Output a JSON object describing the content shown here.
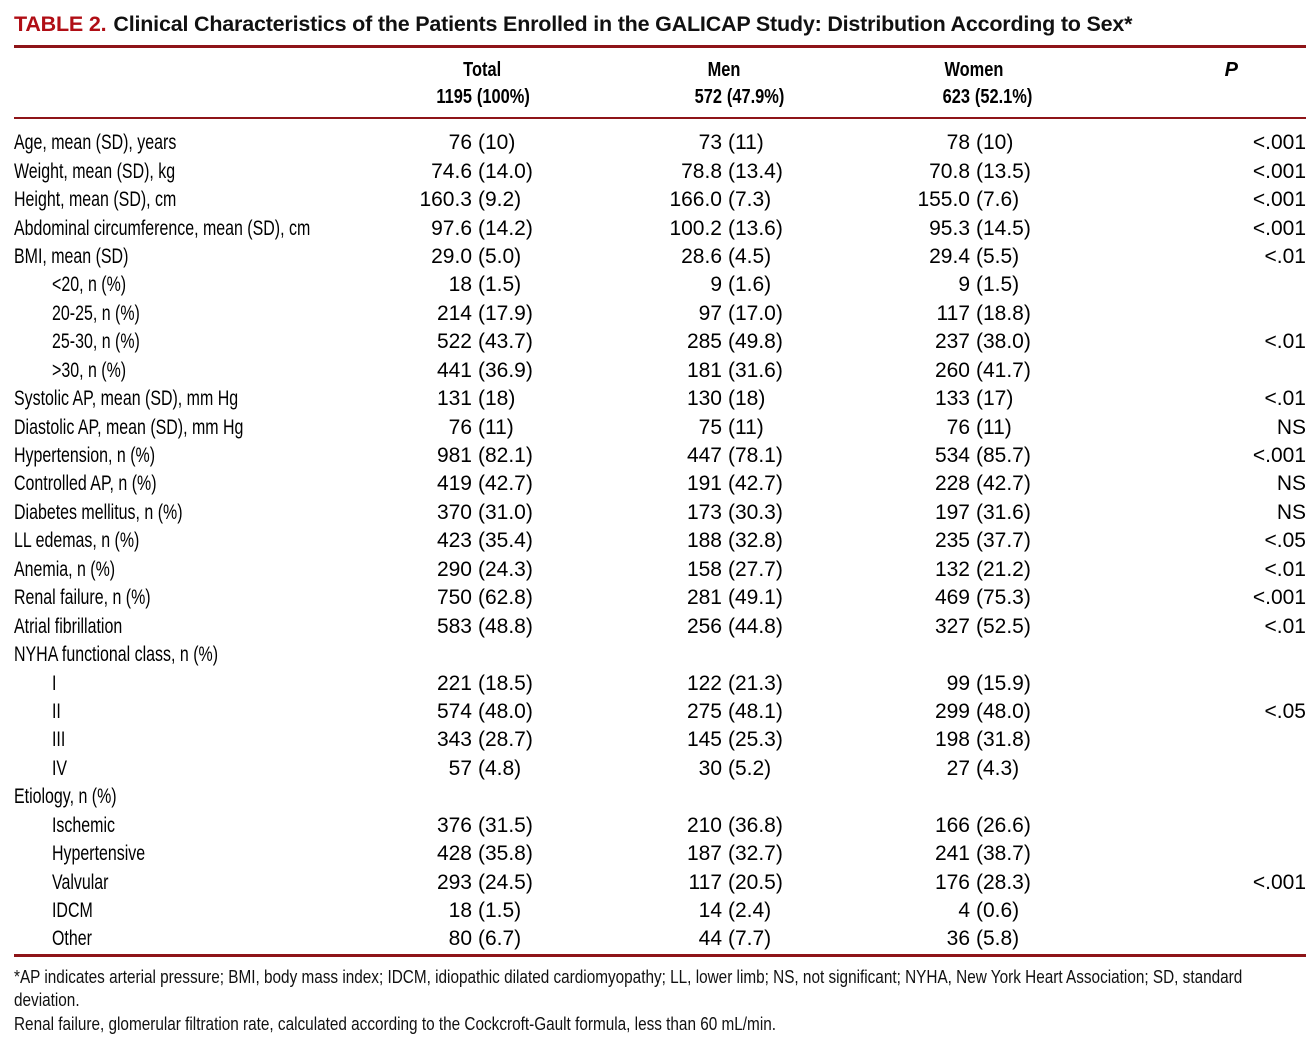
{
  "title": {
    "label": "TABLE 2.",
    "text": "Clinical Characteristics of the Patients Enrolled in the GALICAP Study: Distribution According to Sex*"
  },
  "colors": {
    "accent_red": "#B00E15",
    "rule_red": "#8E1418"
  },
  "table": {
    "columns": [
      {
        "key": "total",
        "label": "Total",
        "count": "1195 (100%)"
      },
      {
        "key": "men",
        "label": "Men",
        "count": "572 (47.9%)"
      },
      {
        "key": "women",
        "label": "Women",
        "count": "623 (52.1%)"
      },
      {
        "key": "p",
        "label": "P"
      }
    ],
    "rows": [
      {
        "label": "Age, mean (SD), years",
        "indent": false,
        "total": "76 (10)",
        "men": "73 (11)",
        "women": "78 (10)",
        "p": "<.001"
      },
      {
        "label": "Weight, mean (SD), kg",
        "indent": false,
        "total": "74.6 (14.0)",
        "men": "78.8 (13.4)",
        "women": "70.8 (13.5)",
        "p": "<.001"
      },
      {
        "label": "Height, mean (SD), cm",
        "indent": false,
        "total": "160.3 (9.2)",
        "men": "166.0 (7.3)",
        "women": "155.0 (7.6)",
        "p": "<.001"
      },
      {
        "label": "Abdominal circumference, mean (SD), cm",
        "indent": false,
        "total": "97.6 (14.2)",
        "men": "100.2 (13.6)",
        "women": "95.3 (14.5)",
        "p": "<.001"
      },
      {
        "label": "BMI, mean (SD)",
        "indent": false,
        "total": "29.0 (5.0)",
        "men": "28.6 (4.5)",
        "women": "29.4 (5.5)",
        "p": "<.01"
      },
      {
        "label": "<20, n (%)",
        "indent": true,
        "total": "18 (1.5)",
        "men": "9 (1.6)",
        "women": "9 (1.5)",
        "p": ""
      },
      {
        "label": "20-25, n (%)",
        "indent": true,
        "total": "214 (17.9)",
        "men": "97 (17.0)",
        "women": "117 (18.8)",
        "p": ""
      },
      {
        "label": "25-30, n (%)",
        "indent": true,
        "total": "522 (43.7)",
        "men": "285 (49.8)",
        "women": "237 (38.0)",
        "p": "<.01"
      },
      {
        "label": ">30, n (%)",
        "indent": true,
        "total": "441 (36.9)",
        "men": "181 (31.6)",
        "women": "260 (41.7)",
        "p": ""
      },
      {
        "label": "Systolic AP, mean (SD), mm  Hg",
        "indent": false,
        "total": "131 (18)",
        "men": "130 (18)",
        "women": "133 (17)",
        "p": "<.01"
      },
      {
        "label": "Diastolic AP, mean (SD), mm  Hg",
        "indent": false,
        "total": "76 (11)",
        "men": "75 (11)",
        "women": "76 (11)",
        "p": "NS"
      },
      {
        "label": "Hypertension, n (%)",
        "indent": false,
        "total": "981 (82.1)",
        "men": "447 (78.1)",
        "women": "534 (85.7)",
        "p": "<.001"
      },
      {
        "label": "Controlled AP, n (%)",
        "indent": false,
        "total": "419 (42.7)",
        "men": "191 (42.7)",
        "women": "228 (42.7)",
        "p": "NS"
      },
      {
        "label": "Diabetes mellitus, n (%)",
        "indent": false,
        "total": "370 (31.0)",
        "men": "173 (30.3)",
        "women": "197 (31.6)",
        "p": "NS"
      },
      {
        "label": "LL edemas, n (%)",
        "indent": false,
        "total": "423 (35.4)",
        "men": "188 (32.8)",
        "women": "235 (37.7)",
        "p": "<.05"
      },
      {
        "label": "Anemia, n (%)",
        "indent": false,
        "total": "290 (24.3)",
        "men": "158 (27.7)",
        "women": "132 (21.2)",
        "p": "<.01"
      },
      {
        "label": "Renal failure, n (%)",
        "indent": false,
        "total": "750 (62.8)",
        "men": "281 (49.1)",
        "women": "469 (75.3)",
        "p": "<.001"
      },
      {
        "label": "Atrial fibrillation",
        "indent": false,
        "total": "583 (48.8)",
        "men": "256 (44.8)",
        "women": "327 (52.5)",
        "p": "<.01"
      },
      {
        "label": "NYHA functional class, n (%)",
        "indent": false,
        "total": "",
        "men": "",
        "women": "",
        "p": ""
      },
      {
        "label": "I",
        "indent": true,
        "total": "221 (18.5)",
        "men": "122 (21.3)",
        "women": "99 (15.9)",
        "p": ""
      },
      {
        "label": "II",
        "indent": true,
        "total": "574 (48.0)",
        "men": "275 (48.1)",
        "women": "299 (48.0)",
        "p": "<.05"
      },
      {
        "label": "III",
        "indent": true,
        "total": "343 (28.7)",
        "men": "145 (25.3)",
        "women": "198 (31.8)",
        "p": ""
      },
      {
        "label": "IV",
        "indent": true,
        "total": "57 (4.8)",
        "men": "30 (5.2)",
        "women": "27 (4.3)",
        "p": ""
      },
      {
        "label": "Etiology, n (%)",
        "indent": false,
        "total": "",
        "men": "",
        "women": "",
        "p": ""
      },
      {
        "label": "Ischemic",
        "indent": true,
        "total": "376 (31.5)",
        "men": "210 (36.8)",
        "women": "166 (26.6)",
        "p": ""
      },
      {
        "label": "Hypertensive",
        "indent": true,
        "total": "428 (35.8)",
        "men": "187 (32.7)",
        "women": "241 (38.7)",
        "p": ""
      },
      {
        "label": "Valvular",
        "indent": true,
        "total": "293 (24.5)",
        "men": "117 (20.5)",
        "women": "176 (28.3)",
        "p": "<.001"
      },
      {
        "label": "IDCM",
        "indent": true,
        "total": "18 (1.5)",
        "men": "14 (2.4)",
        "women": "4 (0.6)",
        "p": ""
      },
      {
        "label": "Other",
        "indent": true,
        "total": "80 (6.7)",
        "men": "44 (7.7)",
        "women": "36 (5.8)",
        "p": ""
      }
    ]
  },
  "footnotes": [
    "*AP indicates arterial pressure; BMI, body mass index; IDCM, idiopathic dilated cardiomyopathy; LL, lower limb; NS, not significant; NYHA, New York Heart Association; SD, standard deviation.",
    "Renal failure, glomerular filtration rate, calculated according to the Cockcroft-Gault formula, less than 60 mL/min."
  ]
}
